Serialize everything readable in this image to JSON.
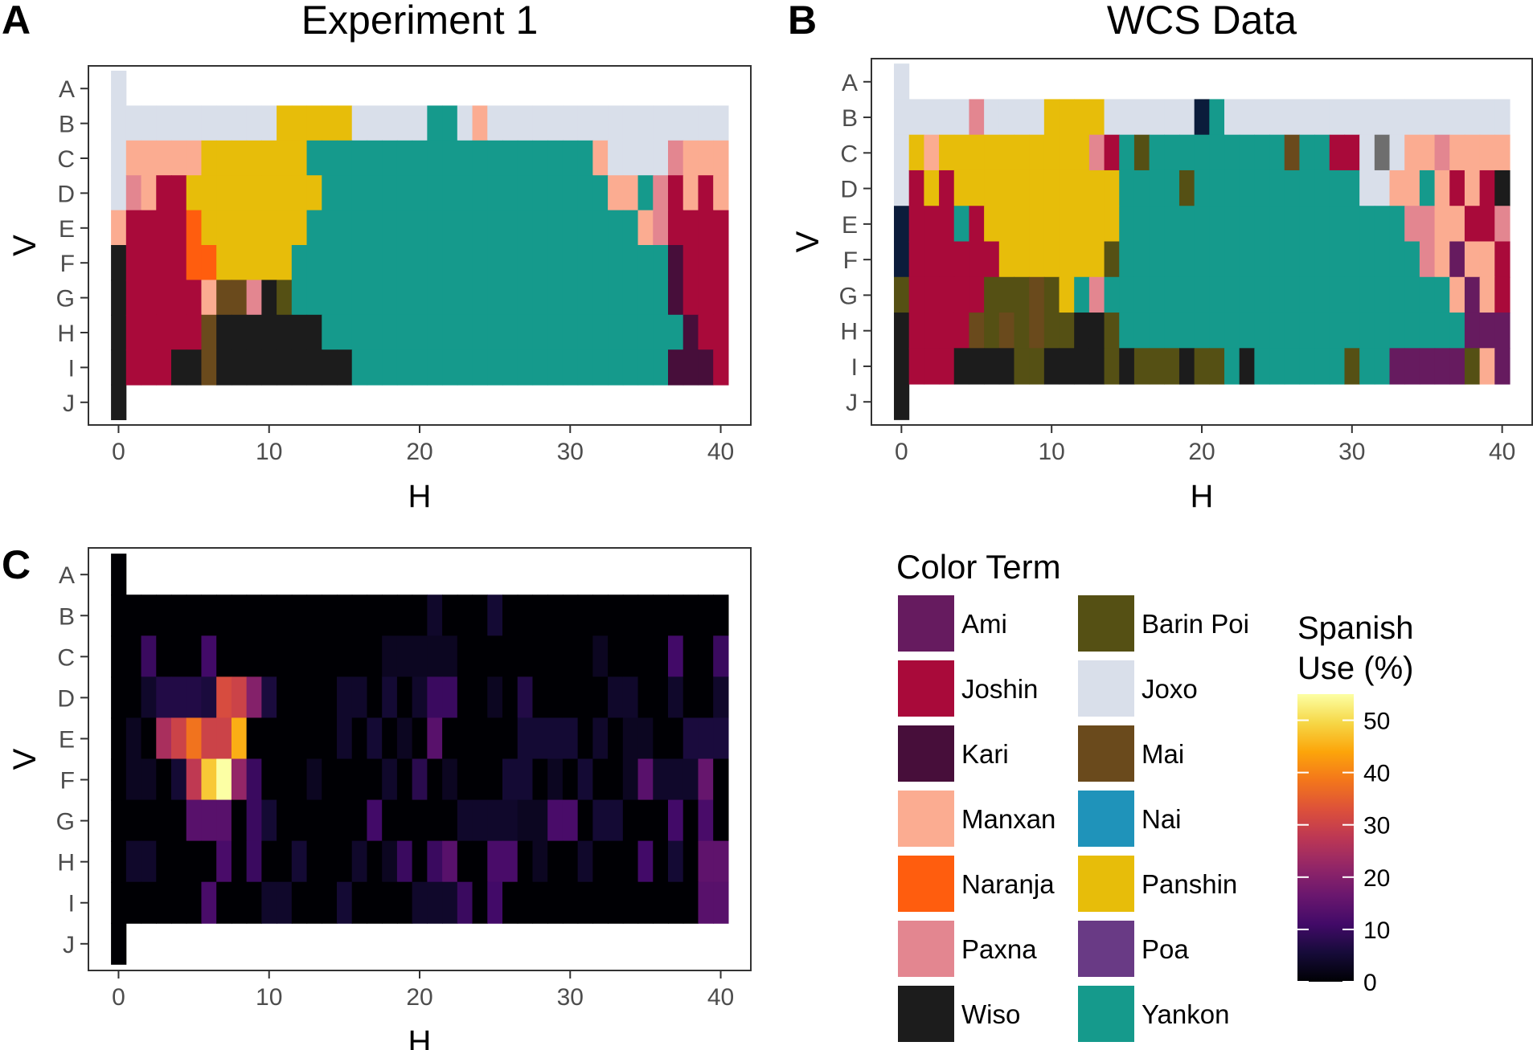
{
  "palette": {
    "J": "#D9DFEA",
    "P": "#E7BD0A",
    "Y": "#159A8C",
    "R": "#A90A3A",
    "M": "#FBAC91",
    "X": "#E38690",
    "N": "#FF5D0E",
    "W": "#1C1C1C",
    "K": "#470E3A",
    "A": "#661B5F",
    "B": "#555014",
    "I": "#6A4A1C",
    "S": "#1F93BA",
    "O": "#693A85",
    "D": "#0B1C3B",
    "G": "#6E6E6E"
  },
  "color_terms": [
    {
      "name": "Ami",
      "color": "#661B5F"
    },
    {
      "name": "Joshin",
      "color": "#A90A3A"
    },
    {
      "name": "Kari",
      "color": "#470E3A"
    },
    {
      "name": "Manxan",
      "color": "#FBAC91"
    },
    {
      "name": "Naranja",
      "color": "#FF5D0E"
    },
    {
      "name": "Paxna",
      "color": "#E38690"
    },
    {
      "name": "Wiso",
      "color": "#1C1C1C"
    },
    {
      "name": "Barin Poi",
      "color": "#555014"
    },
    {
      "name": "Joxo",
      "color": "#D9DFEA"
    },
    {
      "name": "Mai",
      "color": "#6A4A1C"
    },
    {
      "name": "Nai",
      "color": "#1F93BA"
    },
    {
      "name": "Panshin",
      "color": "#E7BD0A"
    },
    {
      "name": "Poa",
      "color": "#693A85"
    },
    {
      "name": "Yankon",
      "color": "#159A8C"
    }
  ],
  "legend": {
    "title": "Color Term",
    "scale_title_line1": "Spanish",
    "scale_title_line2": "Use (%)",
    "scale_min": 0,
    "scale_max": 55,
    "scale_ticks": [
      0,
      10,
      20,
      30,
      40,
      50
    ]
  },
  "chart_data": [
    {
      "type": "heatmap",
      "panel": "A",
      "title": "Experiment 1",
      "xlabel": "H",
      "ylabel": "V",
      "xlim": [
        -2,
        42
      ],
      "xticks": [
        0,
        10,
        20,
        30,
        40
      ],
      "yticks": [
        "A",
        "B",
        "C",
        "D",
        "E",
        "F",
        "G",
        "H",
        "I",
        "J"
      ],
      "achromatic": [
        "J",
        "J",
        "J",
        "J",
        "M",
        "W",
        "W",
        "W",
        "W",
        "W"
      ],
      "rows": [
        "JJJJJJJJJJPPPPPJJJJJYYJMJJJJJJJJJJJJJJJJ",
        "MMMMMPPPPPPPYYYYYYYYYYYYYYYYYYYMJJJJXMMMRR",
        "XMRRPPPPPPPPPYYYYYYYYYYYYYYYYYYYMMYXRMRMR",
        "RRRRNPPPPPPPYYYYYYYYYYYYYYYYYYYYYYMXRRRRR",
        "RRRRNNPPPPPYYYYYYYYYYYYYYYYYYYYYYYYYKRRRRR",
        "RRRRRMIIXWBYYYYYYYYYYYYYYYYYYYYYYYYYKRRRRR",
        "RRRRRIWWWWWWWYYYYYYYYYYYYYYYYYYYYYYYYKRRRR",
        "RRRWWIWWWWWWWWWYYYYYYYYYYYYYYYYYYYYYKKKR"
      ]
    },
    {
      "type": "heatmap",
      "panel": "B",
      "title": "WCS Data",
      "xlabel": "H",
      "ylabel": "V",
      "xlim": [
        -2,
        42
      ],
      "xticks": [
        0,
        10,
        20,
        30,
        40
      ],
      "yticks": [
        "A",
        "B",
        "C",
        "D",
        "E",
        "F",
        "G",
        "H",
        "I",
        "J"
      ],
      "achromatic": [
        "J",
        "J",
        "J",
        "J",
        "D",
        "D",
        "B",
        "W",
        "W",
        "W"
      ],
      "rows": [
        "JJJJXJJJJPPPPJJJJJJDYJJJJJJJJJJJJJJJJJJJ",
        "PMPPPPPPPPPPXRYBYYYYYYYYYIYYRRJGJMMXMMMM",
        "RPRPPPPPPPPPPPYYYYBYYYYYYYYYYYJJMMYMRMRW",
        "RRRYRPPPPPPPPPYYYYYYYYYYYYYYYYYYYXXMMRRXR",
        "RRRRRRPPPPPPPBYYYYYYYYYYYYYYYYYYYYXMAMMRRR",
        "RRRRRBBBIBPYXYYYYYYYYYYYYYYYYYYYYYYYMAMRRRR",
        "RRRRIBIBIBBWWBYYYYYYYYYYYYYYYYYYYYYYYAAAKRR",
        "RRRWWWWBBWWWWBWBBBWBBYWYYYYYYBYYAAAAABMA"
      ]
    },
    {
      "type": "heatmap",
      "panel": "C",
      "xlabel": "H",
      "ylabel": "V",
      "xlim": [
        -2,
        42
      ],
      "xticks": [
        0,
        10,
        20,
        30,
        40
      ],
      "yticks": [
        "A",
        "B",
        "C",
        "D",
        "E",
        "F",
        "G",
        "H",
        "I",
        "J"
      ],
      "value_label": "Spanish Use (%)",
      "achromatic": [
        0,
        0,
        0,
        0,
        0,
        0,
        0,
        0,
        0,
        0
      ],
      "rows": [
        [
          0,
          0,
          0,
          0,
          0,
          0,
          0,
          0,
          0,
          0,
          0,
          0,
          0,
          0,
          0,
          0,
          0,
          0,
          0,
          0,
          4,
          0,
          0,
          0,
          5,
          0,
          0,
          0,
          0,
          0,
          0,
          0,
          0,
          0,
          0,
          0,
          0,
          0,
          0,
          0
        ],
        [
          0,
          10,
          0,
          0,
          0,
          11,
          0,
          0,
          0,
          0,
          0,
          0,
          0,
          0,
          0,
          0,
          0,
          3,
          3,
          3,
          3,
          3,
          0,
          0,
          0,
          0,
          0,
          0,
          0,
          0,
          0,
          3,
          0,
          0,
          0,
          0,
          11,
          0,
          0,
          10,
          0,
          0
        ],
        [
          0,
          4,
          7,
          7,
          7,
          6,
          32,
          30,
          20,
          6,
          0,
          0,
          0,
          0,
          4,
          4,
          0,
          5,
          0,
          4,
          10,
          10,
          0,
          0,
          3,
          0,
          7,
          0,
          0,
          0,
          0,
          0,
          4,
          4,
          0,
          0,
          4,
          0,
          0,
          4,
          0
        ],
        [
          3,
          0,
          25,
          30,
          38,
          30,
          30,
          45,
          0,
          0,
          0,
          0,
          0,
          0,
          4,
          0,
          5,
          0,
          3,
          0,
          14,
          0,
          0,
          0,
          0,
          0,
          5,
          5,
          5,
          5,
          0,
          4,
          0,
          3,
          3,
          0,
          0,
          6,
          6,
          6
        ],
        [
          3,
          3,
          0,
          5,
          28,
          48,
          55,
          22,
          10,
          0,
          0,
          0,
          3,
          0,
          0,
          0,
          0,
          4,
          0,
          8,
          0,
          3,
          0,
          0,
          0,
          5,
          5,
          0,
          3,
          0,
          5,
          0,
          0,
          3,
          14,
          4,
          4,
          4,
          16,
          0
        ],
        [
          0,
          0,
          0,
          0,
          14,
          14,
          14,
          0,
          10,
          5,
          0,
          0,
          0,
          0,
          0,
          0,
          11,
          0,
          0,
          0,
          0,
          0,
          4,
          4,
          4,
          4,
          3,
          3,
          12,
          12,
          0,
          5,
          5,
          0,
          0,
          0,
          11,
          0,
          12,
          0,
          0
        ],
        [
          4,
          4,
          0,
          0,
          0,
          0,
          12,
          0,
          10,
          0,
          0,
          5,
          0,
          0,
          0,
          4,
          0,
          3,
          10,
          0,
          10,
          14,
          0,
          0,
          12,
          12,
          0,
          3,
          0,
          0,
          4,
          0,
          0,
          0,
          11,
          0,
          5,
          0,
          15,
          15,
          15
        ],
        [
          0,
          0,
          0,
          0,
          0,
          12,
          0,
          0,
          0,
          4,
          4,
          0,
          0,
          0,
          5,
          0,
          0,
          0,
          0,
          4,
          4,
          4,
          10,
          0,
          11,
          0,
          0,
          0,
          0,
          0,
          0,
          0,
          0,
          0,
          0,
          0,
          0,
          0,
          14,
          14,
          14
        ]
      ]
    }
  ]
}
